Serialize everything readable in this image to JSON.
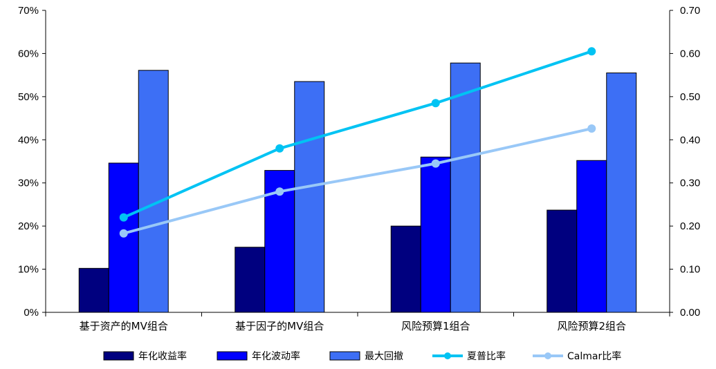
{
  "chart_data": {
    "type": "bar",
    "title": "",
    "xlabel": "",
    "ylabel": "",
    "categories": [
      "基于资产的MV组合",
      "基于因子的MV组合",
      "风险预算1组合",
      "风险预算2组合"
    ],
    "y_left": {
      "range": [
        0,
        70
      ],
      "unit": "%",
      "ticks": [
        "0%",
        "10%",
        "20%",
        "30%",
        "40%",
        "50%",
        "60%",
        "70%"
      ]
    },
    "y_right": {
      "range": [
        0,
        0.7
      ],
      "ticks": [
        "0.00",
        "0.10",
        "0.20",
        "0.30",
        "0.40",
        "0.50",
        "0.60",
        "0.70"
      ]
    },
    "grid": false,
    "legend_position": "bottom",
    "series": [
      {
        "name": "年化收益率",
        "type": "bar",
        "axis": "left",
        "color": "#00007f",
        "values": [
          10.2,
          15.1,
          20.0,
          23.7
        ]
      },
      {
        "name": "年化波动率",
        "type": "bar",
        "axis": "left",
        "color": "#0000ff",
        "values": [
          34.6,
          32.9,
          36.0,
          35.2
        ]
      },
      {
        "name": "最大回撤",
        "type": "bar",
        "axis": "left",
        "color": "#3d6ff5",
        "values": [
          56.1,
          53.5,
          57.8,
          55.5
        ]
      },
      {
        "name": "夏普比率",
        "type": "line",
        "axis": "right",
        "color": "#00c3f3",
        "values": [
          0.22,
          0.38,
          0.485,
          0.605
        ]
      },
      {
        "name": "Calmar比率",
        "type": "line",
        "axis": "right",
        "color": "#99c8f7",
        "values": [
          0.183,
          0.28,
          0.345,
          0.426
        ]
      }
    ]
  }
}
